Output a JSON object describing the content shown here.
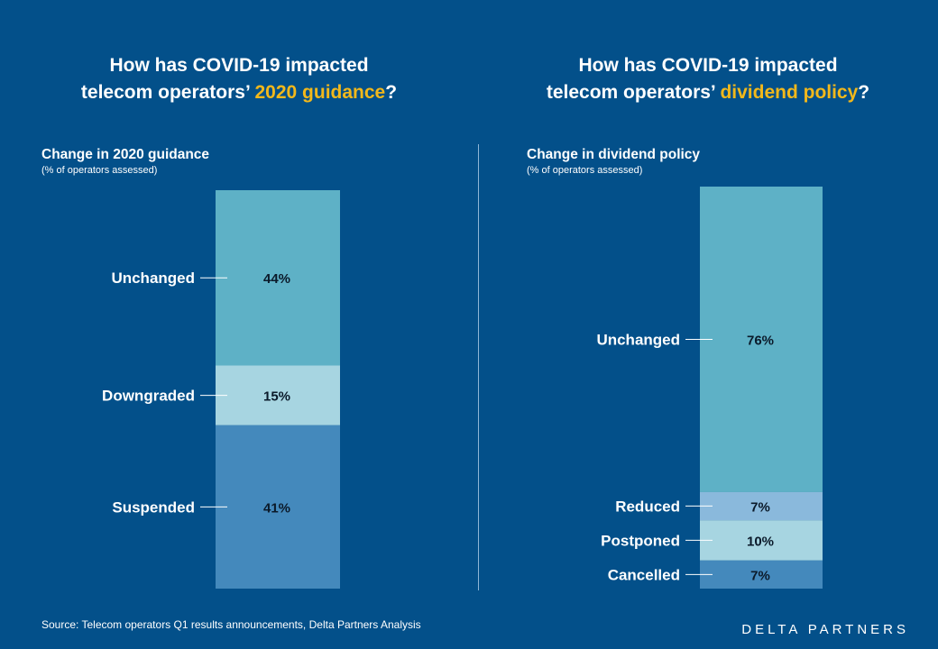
{
  "colors": {
    "background": "#03508a",
    "highlight": "#f2b81b"
  },
  "panels": [
    {
      "title_line1": "How has COVID-19 impacted",
      "title_line2_pre": "telecom operators’ ",
      "title_line2_highlight": "2020 guidance",
      "title_line2_post": "?",
      "subtitle": "Change in 2020 guidance",
      "note": "(% of operators assessed)"
    },
    {
      "title_line1": "How has COVID-19 impacted",
      "title_line2_pre": "telecom operators’ ",
      "title_line2_highlight": "dividend policy",
      "title_line2_post": "?",
      "subtitle": "Change in dividend policy",
      "note": "(% of operators assessed)"
    }
  ],
  "chart_data": [
    {
      "type": "bar",
      "stacked": true,
      "title": "Change in 2020 guidance",
      "ylabel": "% of operators assessed",
      "ylim": [
        0,
        100
      ],
      "categories": [
        "Unchanged",
        "Downgraded",
        "Suspended"
      ],
      "values": [
        44,
        15,
        41
      ],
      "labels": [
        "44%",
        "15%",
        "41%"
      ],
      "colors": [
        "#5eb1c6",
        "#a7d5e1",
        "#4489bc"
      ]
    },
    {
      "type": "bar",
      "stacked": true,
      "title": "Change in dividend policy",
      "ylabel": "% of operators assessed",
      "ylim": [
        0,
        100
      ],
      "categories": [
        "Unchanged",
        "Reduced",
        "Postponed",
        "Cancelled"
      ],
      "values": [
        76,
        7,
        10,
        7
      ],
      "labels": [
        "76%",
        "7%",
        "10%",
        "7%"
      ],
      "colors": [
        "#5eb1c6",
        "#8ab9dc",
        "#a7d5e1",
        "#4489bc"
      ]
    }
  ],
  "footer": {
    "source": "Source:  Telecom operators Q1 results announcements,  Delta Partners Analysis",
    "logo": "DELTA PARTNERS"
  }
}
